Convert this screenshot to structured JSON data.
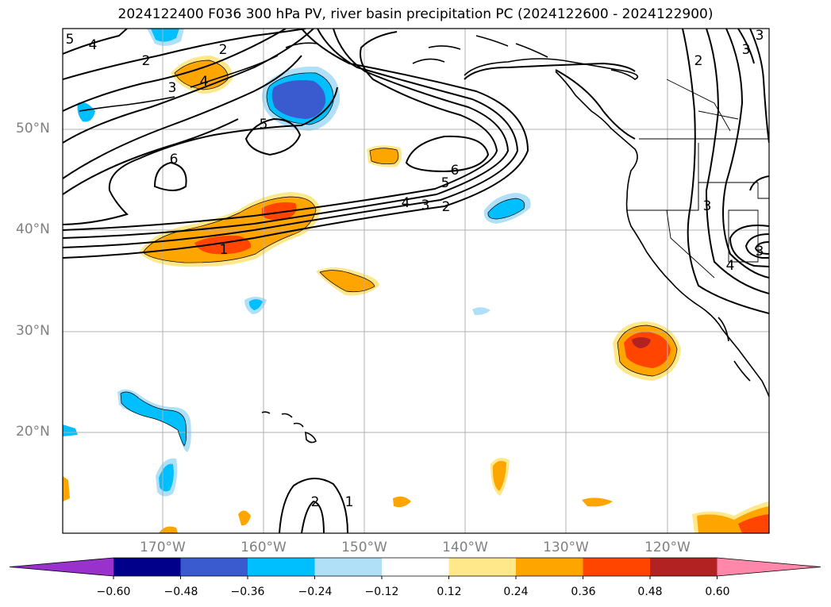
{
  "title": "2024122400 F036 300 hPa PV, river basin precipitation PC (2024122600 - 2024122900)",
  "map": {
    "lat_labels": [
      "50°N",
      "40°N",
      "30°N",
      "20°N"
    ],
    "lon_labels": [
      "170°W",
      "160°W",
      "150°W",
      "140°W",
      "130°W",
      "120°W"
    ],
    "contour_labels": {
      "five_nw": "5",
      "four_nw": "4",
      "two_nw": "2",
      "three_nw": "3",
      "four_mid": "4",
      "five_center": "5",
      "six_w": "6",
      "six_e": "6",
      "five_e": "5",
      "four_e": "4",
      "three_e": "3",
      "two_e": "2",
      "one_w": "1",
      "two_ne": "2",
      "three_ne": "3",
      "three_ne2": "3",
      "three_coast": "3",
      "four_coast": "4",
      "three_low": "3",
      "two_s": "2",
      "one_s": "1",
      "two_w": "2"
    }
  },
  "colorbar": {
    "ticks": [
      "−0.60",
      "−0.48",
      "−0.36",
      "−0.24",
      "−0.12",
      "0.12",
      "0.24",
      "0.36",
      "0.48",
      "0.60"
    ],
    "colors": [
      "#9932cc",
      "#00008b",
      "#3a5bd0",
      "#00bfff",
      "#b0e0f8",
      "#ffffff",
      "#ffe88a",
      "#ffa500",
      "#ff4500",
      "#b22222",
      "#ff88aa"
    ]
  }
}
